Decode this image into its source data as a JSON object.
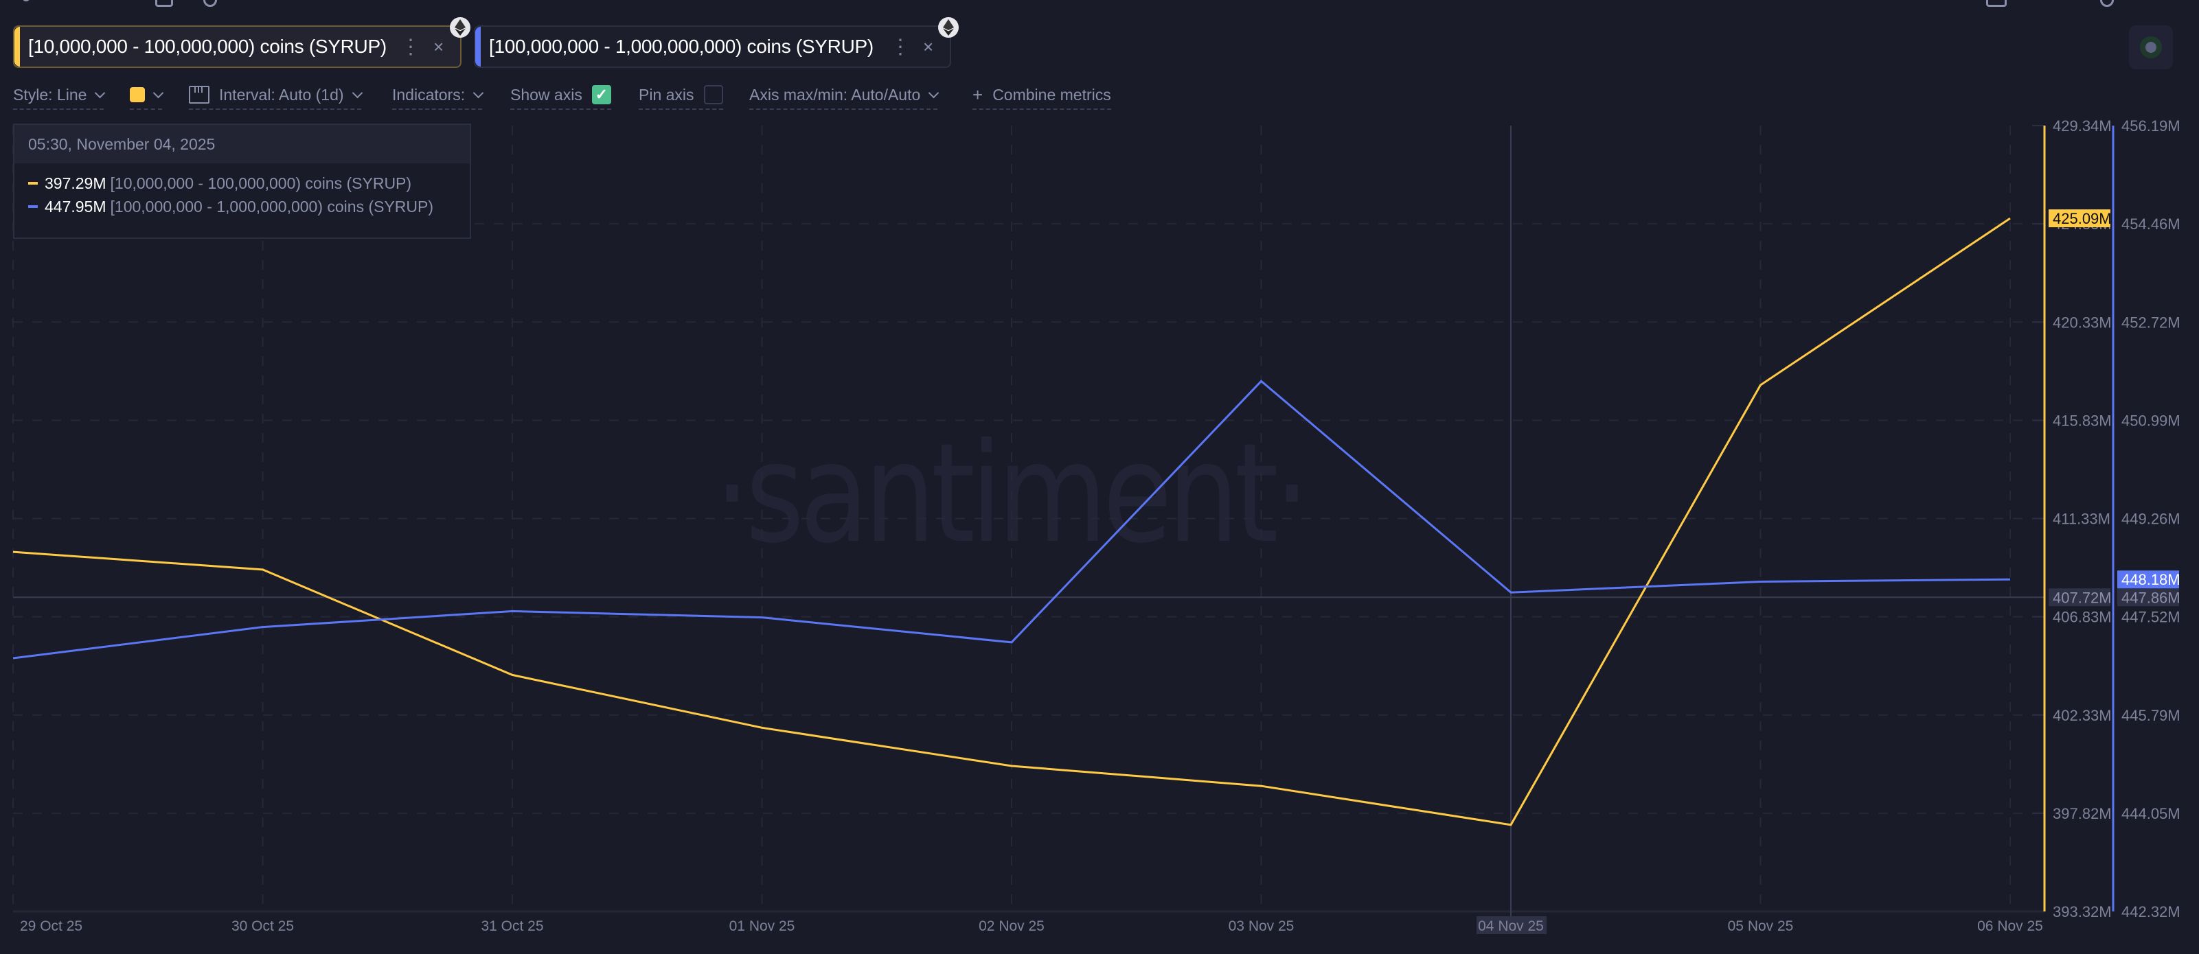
{
  "tabs": [
    {
      "label": "[10,000,000 - 100,000,000) coins (SYRUP)",
      "color": "#ffcb47",
      "menu": "⋮",
      "close": "×",
      "asset_icon": "ethereum-icon"
    },
    {
      "label": "[100,000,000 - 1,000,000,000) coins (SYRUP)",
      "color": "#5b77f5",
      "menu": "⋮",
      "close": "×",
      "asset_icon": "ethereum-icon"
    }
  ],
  "toolbar": {
    "style": "Style: Line",
    "color_swatch": "#ffcb47",
    "interval": "Interval: Auto (1d)",
    "indicators": "Indicators:",
    "show_axis": "Show axis",
    "show_axis_checked": true,
    "pin_axis": "Pin axis",
    "pin_axis_checked": false,
    "axis_maxmin": "Axis max/min: Auto/Auto",
    "combine": "Combine metrics",
    "combine_icon": "+"
  },
  "tooltip": {
    "date": "05:30, November 04, 2025",
    "rows": [
      {
        "value": "397.29M",
        "name": "[10,000,000 - 100,000,000) coins (SYRUP)",
        "color": "#ffcb47"
      },
      {
        "value": "447.95M",
        "name": "[100,000,000 - 1,000,000,000) coins (SYRUP)",
        "color": "#5b77f5"
      }
    ]
  },
  "watermark": "·santiment·",
  "chart_data": {
    "type": "line",
    "title": "",
    "xlabel": "",
    "ylabel": "",
    "categories": [
      "29 Oct 25",
      "30 Oct 25",
      "31 Oct 25",
      "01 Nov 25",
      "02 Nov 25",
      "03 Nov 25",
      "04 Nov 25",
      "05 Nov 25",
      "06 Nov 25"
    ],
    "series": [
      {
        "name": "[10,000,000 - 100,000,000) coins (SYRUP)",
        "color": "#ffcb47",
        "axis": "left",
        "values": [
          409.8,
          408.99,
          404.16,
          401.74,
          399.99,
          399.07,
          397.29,
          417.45,
          425.09
        ],
        "last_value_label": "425.09M"
      },
      {
        "name": "[100,000,000 - 1,000,000,000) coins (SYRUP)",
        "color": "#5b77f5",
        "axis": "right",
        "values": [
          446.79,
          447.34,
          447.62,
          447.51,
          447.07,
          451.68,
          447.95,
          448.14,
          448.18
        ],
        "last_value_label": "448.18M"
      }
    ],
    "axes": {
      "left": {
        "range": [
          393.32,
          429.34
        ],
        "ticks": [
          "429.34M",
          "424.83M",
          "420.33M",
          "415.83M",
          "411.33M",
          "406.83M",
          "402.33M",
          "397.82M",
          "393.32M"
        ]
      },
      "right": {
        "range": [
          442.32,
          456.19
        ],
        "ticks": [
          "456.19M",
          "454.46M",
          "452.72M",
          "450.99M",
          "449.26M",
          "447.52M",
          "445.79M",
          "444.05M",
          "442.32M"
        ]
      }
    },
    "crosshair": {
      "x_label": "04 Nov 25",
      "left_label": "407.72M",
      "right_label": "447.86M",
      "left_value": 407.72
    },
    "grid": true,
    "legend_position": "top-left tooltip"
  }
}
